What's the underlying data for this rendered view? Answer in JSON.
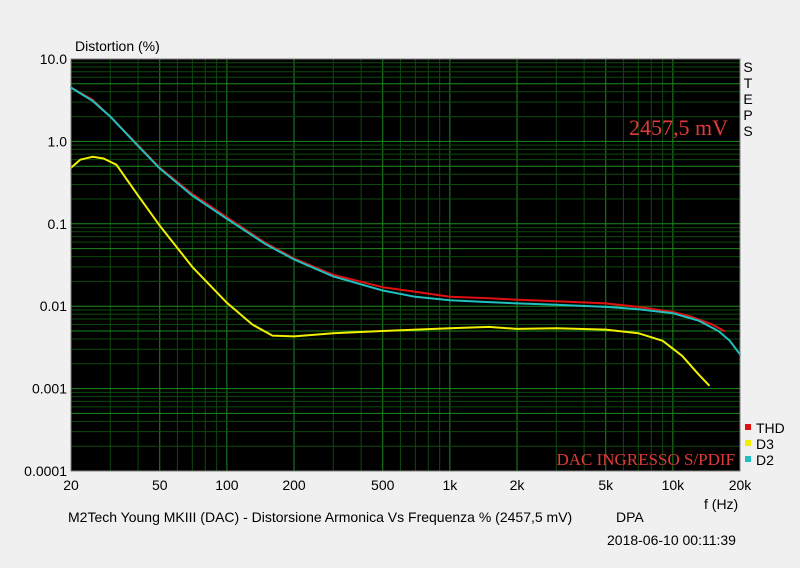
{
  "chart_data": {
    "type": "line",
    "title": "M2Tech Young MKIII (DAC) - Distorsione Armonica Vs Frequenza % (2457,5 mV)",
    "source_label": "DPA",
    "timestamp": "2018-06-10 00:11:39",
    "ylabel": "Distortion (%)",
    "xlabel": "f (Hz)",
    "x_scale": "log",
    "y_scale": "log",
    "xlim": [
      20,
      20000
    ],
    "ylim": [
      0.0001,
      10
    ],
    "grid": true,
    "x_tick_values": [
      20,
      50,
      100,
      200,
      500,
      1000,
      2000,
      5000,
      10000,
      20000
    ],
    "x_tick_labels": [
      "20",
      "50",
      "100",
      "200",
      "500",
      "1k",
      "2k",
      "5k",
      "10k",
      "20k"
    ],
    "y_tick_values": [
      10,
      1,
      0.1,
      0.01,
      0.001,
      0.0001
    ],
    "y_tick_labels": [
      "10.0",
      "1.0",
      "0.1",
      "0.01",
      "0.001",
      "0.0001"
    ],
    "annotations": {
      "level": "2457,5 mV",
      "input": "DAC INGRESSO S/PDIF",
      "steps": "STEPS"
    },
    "legend_position": "bottom-right",
    "series": [
      {
        "name": "THD",
        "color": "#e01010",
        "points": [
          [
            20,
            4.5
          ],
          [
            25,
            3.2
          ],
          [
            30,
            2.0
          ],
          [
            40,
            0.9
          ],
          [
            50,
            0.48
          ],
          [
            70,
            0.23
          ],
          [
            100,
            0.12
          ],
          [
            150,
            0.058
          ],
          [
            200,
            0.038
          ],
          [
            300,
            0.024
          ],
          [
            500,
            0.017
          ],
          [
            700,
            0.015
          ],
          [
            1000,
            0.013
          ],
          [
            1500,
            0.0125
          ],
          [
            2000,
            0.012
          ],
          [
            3000,
            0.0115
          ],
          [
            5000,
            0.0108
          ],
          [
            7000,
            0.0098
          ],
          [
            10000,
            0.0085
          ],
          [
            12000,
            0.0075
          ],
          [
            15000,
            0.006
          ],
          [
            17000,
            0.005
          ]
        ]
      },
      {
        "name": "D3",
        "color": "#f0f000",
        "points": [
          [
            20,
            0.48
          ],
          [
            22,
            0.6
          ],
          [
            25,
            0.65
          ],
          [
            28,
            0.62
          ],
          [
            32,
            0.52
          ],
          [
            40,
            0.22
          ],
          [
            50,
            0.095
          ],
          [
            70,
            0.03
          ],
          [
            100,
            0.011
          ],
          [
            130,
            0.006
          ],
          [
            160,
            0.0044
          ],
          [
            200,
            0.0043
          ],
          [
            300,
            0.0047
          ],
          [
            500,
            0.005
          ],
          [
            1000,
            0.0054
          ],
          [
            1500,
            0.0056
          ],
          [
            2000,
            0.0053
          ],
          [
            3000,
            0.0054
          ],
          [
            5000,
            0.0052
          ],
          [
            7000,
            0.0047
          ],
          [
            9000,
            0.0038
          ],
          [
            11000,
            0.0025
          ],
          [
            13000,
            0.0015
          ],
          [
            14500,
            0.0011
          ]
        ]
      },
      {
        "name": "D2",
        "color": "#20c0c0",
        "points": [
          [
            20,
            4.5
          ],
          [
            25,
            3.1
          ],
          [
            30,
            2.0
          ],
          [
            40,
            0.88
          ],
          [
            50,
            0.47
          ],
          [
            70,
            0.22
          ],
          [
            100,
            0.115
          ],
          [
            150,
            0.056
          ],
          [
            200,
            0.037
          ],
          [
            300,
            0.023
          ],
          [
            500,
            0.0155
          ],
          [
            700,
            0.013
          ],
          [
            1000,
            0.0118
          ],
          [
            1500,
            0.0112
          ],
          [
            2000,
            0.0108
          ],
          [
            3000,
            0.0104
          ],
          [
            5000,
            0.0098
          ],
          [
            7000,
            0.0092
          ],
          [
            10000,
            0.0082
          ],
          [
            13000,
            0.0067
          ],
          [
            16000,
            0.005
          ],
          [
            18000,
            0.0038
          ],
          [
            20000,
            0.0026
          ]
        ]
      }
    ]
  }
}
